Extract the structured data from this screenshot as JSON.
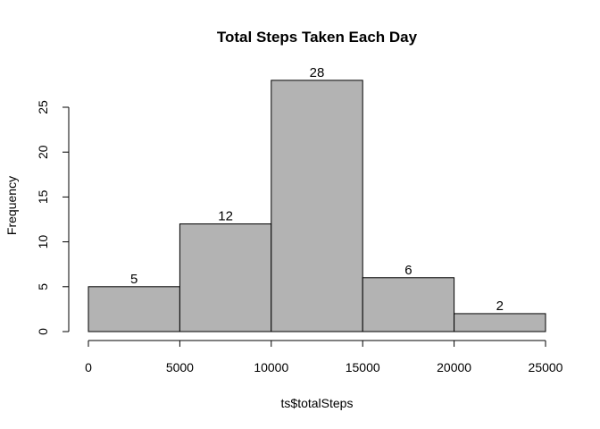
{
  "chart_data": {
    "type": "bar",
    "title": "Total Steps Taken Each Day",
    "xlabel": "ts$totalSteps",
    "ylabel": "Frequency",
    "bins": [
      {
        "start": 0,
        "end": 5000,
        "value": 5
      },
      {
        "start": 5000,
        "end": 10000,
        "value": 12
      },
      {
        "start": 10000,
        "end": 15000,
        "value": 28
      },
      {
        "start": 15000,
        "end": 20000,
        "value": 6
      },
      {
        "start": 20000,
        "end": 25000,
        "value": 2
      }
    ],
    "x_ticks": [
      "0",
      "5000",
      "10000",
      "15000",
      "20000",
      "25000"
    ],
    "y_ticks": [
      "0",
      "5",
      "10",
      "15",
      "20",
      "25"
    ],
    "xlim": [
      0,
      25000
    ],
    "ylim": [
      0,
      28
    ],
    "grid": false,
    "legend": "none",
    "bar_color": "#b3b3b3",
    "edge_color": "#000000"
  }
}
